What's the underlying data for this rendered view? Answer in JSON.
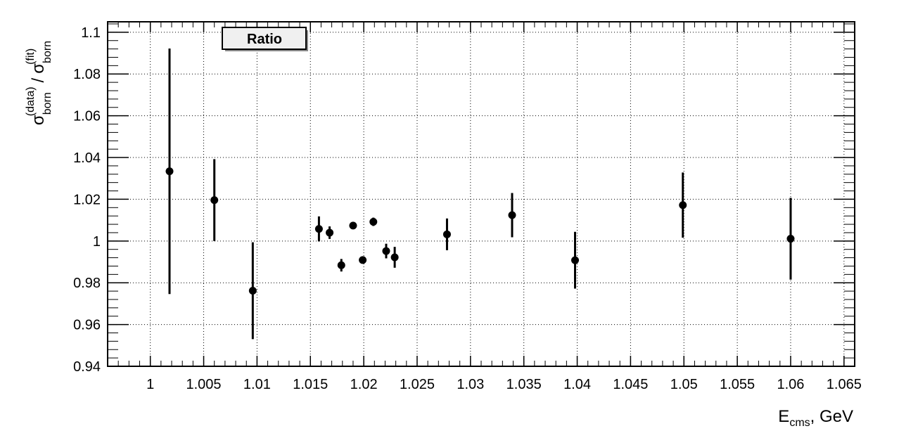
{
  "chart_data": {
    "type": "scatter",
    "title": "Ratio",
    "xlabel": {
      "main": "E",
      "sub": "cms",
      "suffix": ", GeV"
    },
    "ylabel": {
      "sym1": "σ",
      "sup1": "(data)",
      "sub1": "born",
      "sep": "/",
      "sym2": "σ",
      "sup2": "(fit)",
      "sub2": "born"
    },
    "xlim": [
      0.996,
      1.066
    ],
    "ylim": [
      0.94,
      1.105
    ],
    "xticks": [
      1,
      1.005,
      1.01,
      1.015,
      1.02,
      1.025,
      1.03,
      1.035,
      1.04,
      1.045,
      1.05,
      1.055,
      1.06,
      1.065
    ],
    "xtick_labels": [
      "1",
      "1.005",
      "1.01",
      "1.015",
      "1.02",
      "1.025",
      "1.03",
      "1.035",
      "1.04",
      "1.045",
      "1.05",
      "1.055",
      "1.06",
      "1.065"
    ],
    "yticks": [
      0.94,
      0.96,
      0.98,
      1.0,
      1.02,
      1.04,
      1.06,
      1.08,
      1.1
    ],
    "ytick_labels": [
      "0.94",
      "0.96",
      "0.98",
      "1",
      "1.02",
      "1.04",
      "1.06",
      "1.08",
      "1.1"
    ],
    "grid": true,
    "series": [
      {
        "points": [
          {
            "x": 1.0018,
            "y": 1.0334,
            "err": 0.0588
          },
          {
            "x": 1.006,
            "y": 1.0196,
            "err": 0.0196
          },
          {
            "x": 1.0096,
            "y": 0.9762,
            "err": 0.0232
          },
          {
            "x": 1.0158,
            "y": 1.0058,
            "err": 0.006
          },
          {
            "x": 1.0168,
            "y": 1.004,
            "err": 0.003
          },
          {
            "x": 1.0179,
            "y": 0.9884,
            "err": 0.003
          },
          {
            "x": 1.019,
            "y": 1.0074,
            "err": 0.0015
          },
          {
            "x": 1.0199,
            "y": 0.9909,
            "err": 0.0015
          },
          {
            "x": 1.0209,
            "y": 1.0092,
            "err": 0.002
          },
          {
            "x": 1.0221,
            "y": 0.9952,
            "err": 0.0035
          },
          {
            "x": 1.0229,
            "y": 0.9922,
            "err": 0.005
          },
          {
            "x": 1.0278,
            "y": 1.0032,
            "err": 0.0076
          },
          {
            "x": 1.0339,
            "y": 1.0124,
            "err": 0.0106
          },
          {
            "x": 1.0398,
            "y": 0.9908,
            "err": 0.0136
          },
          {
            "x": 1.0499,
            "y": 1.0172,
            "err": 0.0156
          },
          {
            "x": 1.06,
            "y": 1.0011,
            "err": 0.0196
          }
        ]
      }
    ]
  }
}
